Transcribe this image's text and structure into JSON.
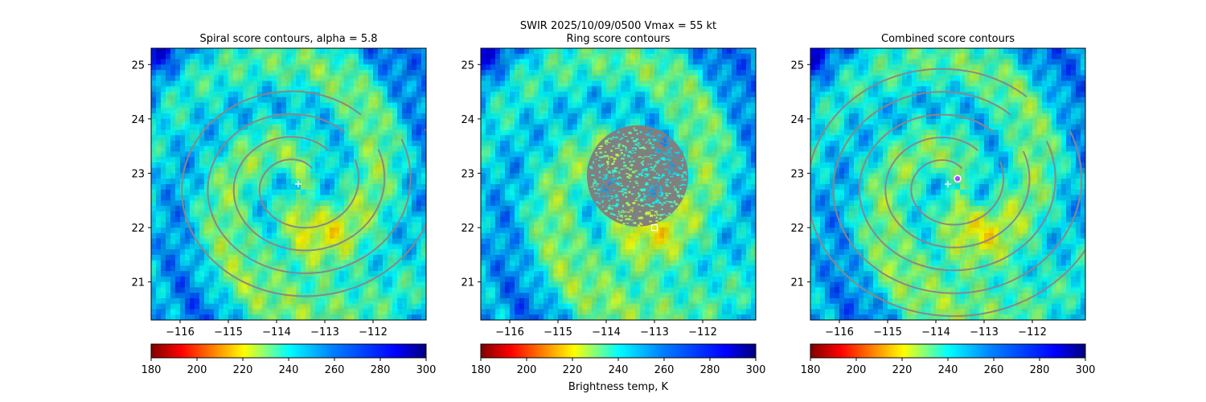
{
  "suptitle": {
    "line1": "SWIR  2025/10/09/0500    Vmax = 55 kt"
  },
  "colormap": "jet_r",
  "chart_data": [
    {
      "type": "heatmap",
      "title": "Spiral score contours, alpha =  5.8",
      "xlim": [
        -116.6,
        -110.9
      ],
      "ylim": [
        20.3,
        25.3
      ],
      "x_ticks": [
        -116,
        -115,
        -114,
        -113,
        -112
      ],
      "x_tick_labels": [
        "−116",
        "−115",
        "−114",
        "−113",
        "−112"
      ],
      "y_ticks": [
        21,
        22,
        23,
        24,
        25
      ],
      "y_tick_labels": [
        "21",
        "22",
        "23",
        "24",
        "25"
      ],
      "storm_center": {
        "x": -113.55,
        "y": 22.8,
        "y_marker_label": "+"
      },
      "overlay": "spiral-contours",
      "contour_color": "#888888",
      "colorbar": {
        "range": [
          180,
          300
        ],
        "ticks": [
          180,
          200,
          220,
          240,
          260,
          280,
          300
        ],
        "tick_labels": [
          "180",
          "200",
          "220",
          "240",
          "260",
          "280",
          "300"
        ],
        "label": ""
      }
    },
    {
      "type": "heatmap",
      "title": "Ring score contours",
      "xlim": [
        -116.6,
        -110.9
      ],
      "ylim": [
        20.3,
        25.3
      ],
      "x_ticks": [
        -116,
        -115,
        -114,
        -113,
        -112
      ],
      "x_tick_labels": [
        "−116",
        "−115",
        "−114",
        "−113",
        "−112"
      ],
      "y_ticks": [
        21,
        22,
        23,
        24,
        25
      ],
      "y_tick_labels": [
        "21",
        "22",
        "23",
        "24",
        "25"
      ],
      "ring_mask": {
        "center_x": -113.35,
        "center_y": 22.95,
        "radius_deg": 1.05
      },
      "ring_marker": {
        "x": -113.0,
        "y": 22.0
      },
      "overlay": "ring-mask",
      "contour_color": "#808080",
      "colorbar": {
        "range": [
          180,
          300
        ],
        "ticks": [
          180,
          200,
          220,
          240,
          260,
          280,
          300
        ],
        "tick_labels": [
          "180",
          "200",
          "220",
          "240",
          "260",
          "280",
          "300"
        ],
        "label": "Brightness temp, K"
      }
    },
    {
      "type": "heatmap",
      "title": "Combined score contours",
      "xlim": [
        -116.6,
        -110.9
      ],
      "ylim": [
        20.3,
        25.3
      ],
      "x_ticks": [
        -116,
        -115,
        -114,
        -113,
        -112
      ],
      "x_tick_labels": [
        "−116",
        "−115",
        "−114",
        "−113",
        "−112"
      ],
      "y_ticks": [
        21,
        22,
        23,
        24,
        25
      ],
      "y_tick_labels": [
        "21",
        "22",
        "23",
        "24",
        "25"
      ],
      "storm_center": {
        "x": -113.75,
        "y": 22.8
      },
      "combined_center": {
        "x": -113.55,
        "y": 22.9
      },
      "overlay": "combined-contours",
      "contour_color": "#888888",
      "colorbar": {
        "range": [
          180,
          300
        ],
        "ticks": [
          180,
          200,
          220,
          240,
          260,
          280,
          300
        ],
        "tick_labels": [
          "180",
          "200",
          "220",
          "240",
          "260",
          "280",
          "300"
        ],
        "label": ""
      }
    }
  ]
}
